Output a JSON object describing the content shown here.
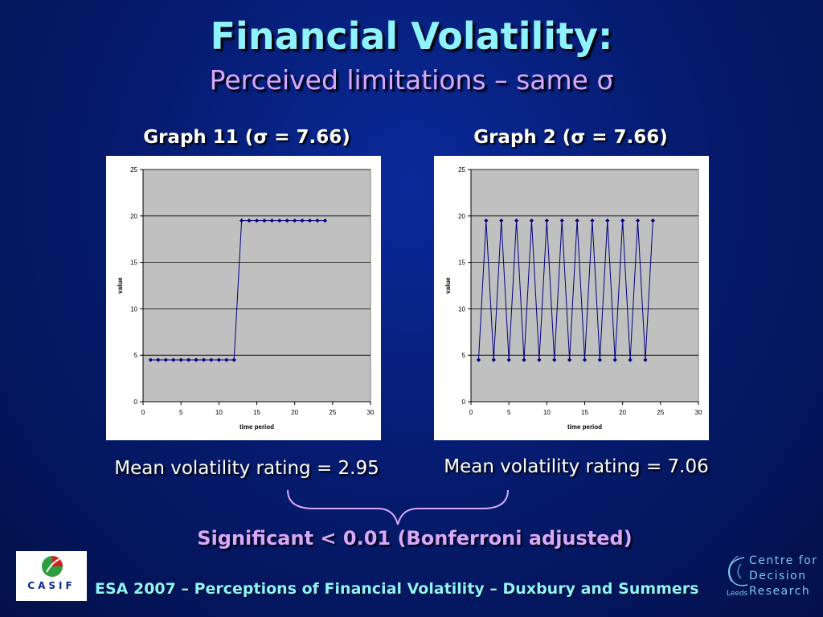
{
  "slide": {
    "title": "Financial Volatility:",
    "subtitle": "Perceived limitations – same σ",
    "significance": "Significant < 0.01 (Bonferroni adjusted)",
    "footer": "ESA 2007 – Perceptions of Financial Volatility – Duxbury and Summers",
    "logo_left_text": "CASIF",
    "logo_right": {
      "line1": "Centre for",
      "line2": "Decision",
      "line3": "Research",
      "small": "Leeds"
    }
  },
  "graphs": [
    {
      "heading": "Graph 11 (σ = 7.66)",
      "mean_label": "Mean volatility rating = 2.95"
    },
    {
      "heading": "Graph 2 (σ = 7.66)",
      "mean_label": "Mean volatility rating = 7.06"
    }
  ],
  "colors": {
    "title": "#8ef3ff",
    "subtitle": "#d8a8ff",
    "series": "#000080",
    "plot_bg": "#c0c0c0"
  },
  "chart_data": [
    {
      "type": "line",
      "title": "Graph 11 (σ = 7.66)",
      "xlabel": "time period",
      "ylabel": "value",
      "xlim": [
        0,
        30
      ],
      "ylim": [
        0,
        25
      ],
      "xticks": [
        0,
        5,
        10,
        15,
        20,
        25,
        30
      ],
      "yticks": [
        0,
        5,
        10,
        15,
        20,
        25
      ],
      "grid": "horizontal",
      "series": [
        {
          "x": [
            1,
            2,
            3,
            4,
            5,
            6,
            7,
            8,
            9,
            10,
            11,
            12,
            13,
            14,
            15,
            16,
            17,
            18,
            19,
            20,
            21,
            22,
            23,
            24
          ],
          "y": [
            4.5,
            4.5,
            4.5,
            4.5,
            4.5,
            4.5,
            4.5,
            4.5,
            4.5,
            4.5,
            4.5,
            4.5,
            19.5,
            19.5,
            19.5,
            19.5,
            19.5,
            19.5,
            19.5,
            19.5,
            19.5,
            19.5,
            19.5,
            19.5
          ]
        }
      ]
    },
    {
      "type": "line",
      "title": "Graph 2 (σ = 7.66)",
      "xlabel": "time period",
      "ylabel": "value",
      "xlim": [
        0,
        30
      ],
      "ylim": [
        0,
        25
      ],
      "xticks": [
        0,
        5,
        10,
        15,
        20,
        25,
        30
      ],
      "yticks": [
        0,
        5,
        10,
        15,
        20,
        25
      ],
      "grid": "horizontal",
      "series": [
        {
          "x": [
            1,
            2,
            3,
            4,
            5,
            6,
            7,
            8,
            9,
            10,
            11,
            12,
            13,
            14,
            15,
            16,
            17,
            18,
            19,
            20,
            21,
            22,
            23,
            24
          ],
          "y": [
            4.5,
            19.5,
            4.5,
            19.5,
            4.5,
            19.5,
            4.5,
            19.5,
            4.5,
            19.5,
            4.5,
            19.5,
            4.5,
            19.5,
            4.5,
            19.5,
            4.5,
            19.5,
            4.5,
            19.5,
            4.5,
            19.5,
            4.5,
            19.5
          ]
        }
      ]
    }
  ]
}
